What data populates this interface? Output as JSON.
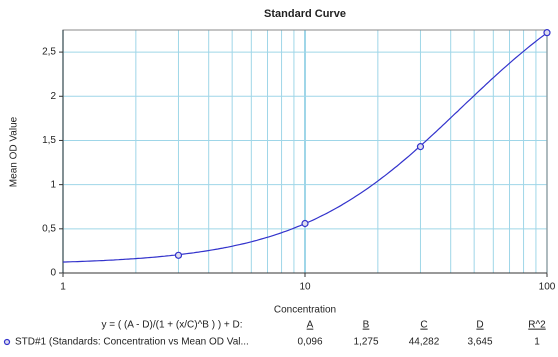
{
  "chart_data": {
    "type": "scatter",
    "title": "Standard Curve",
    "x_label": "Concentration",
    "y_label": "Mean OD Value",
    "x": [
      3,
      10,
      30,
      100
    ],
    "series": [
      {
        "name": "STD#1 (Standards: Concentration vs Mean OD Val...",
        "color": "#3333cc",
        "values": [
          0.2,
          0.56,
          1.43,
          2.72
        ]
      }
    ],
    "log_x": true,
    "xlim": [
      1,
      100
    ],
    "xticks": [
      1,
      10,
      100
    ],
    "xgrid": [
      2,
      3,
      4,
      5,
      6,
      7,
      8,
      9,
      20,
      30,
      40,
      50,
      60,
      70,
      80,
      90
    ],
    "ylim": [
      0,
      2.75
    ],
    "yticks": [
      0,
      {
        "value": 0.5,
        "label": "0,5"
      },
      1,
      {
        "value": 1.5,
        "label": "1,5"
      },
      2,
      {
        "value": 2.5,
        "label": "2,5"
      }
    ],
    "grid": true,
    "fit": {
      "equation": "y = ( (A - D)/(1 + (x/C)^B ) ) + D:",
      "names": [
        "A",
        "B",
        "C",
        "D",
        "R^2"
      ],
      "values": [
        {
          "value": 0.096,
          "label": "0,096"
        },
        {
          "value": 1.275,
          "label": "1,275"
        },
        {
          "value": 44.282,
          "label": "44,282"
        },
        {
          "value": 3.645,
          "label": "3,645"
        },
        1
      ]
    }
  }
}
